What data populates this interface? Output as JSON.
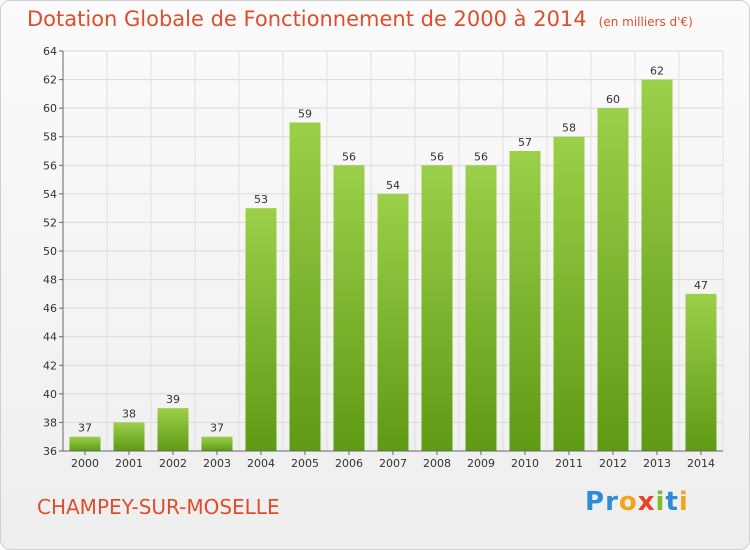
{
  "chart_data": {
    "type": "bar",
    "title": "Dotation Globale de Fonctionnement de 2000 à 2014",
    "subtitle": "(en milliers d'€)",
    "categories": [
      "2000",
      "2001",
      "2002",
      "2003",
      "2004",
      "2005",
      "2006",
      "2007",
      "2008",
      "2009",
      "2010",
      "2011",
      "2012",
      "2013",
      "2014"
    ],
    "values": [
      37,
      38,
      39,
      37,
      53,
      59,
      56,
      54,
      56,
      56,
      57,
      58,
      60,
      62,
      47
    ],
    "ylim": [
      36,
      64
    ],
    "yticks": [
      36,
      38,
      40,
      42,
      44,
      46,
      48,
      50,
      52,
      54,
      56,
      58,
      60,
      62,
      64
    ],
    "grid": true,
    "colors": {
      "bar_top": "#9ccf4a",
      "bar_bottom": "#5f9a14",
      "title": "#e04d2c"
    }
  },
  "commune": "CHAMPEY-SUR-MOSELLE",
  "logo": {
    "text": "Proxiti"
  }
}
